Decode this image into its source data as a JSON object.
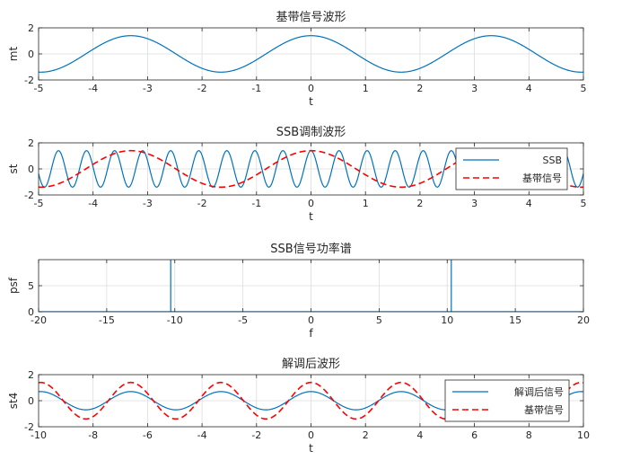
{
  "chart_data": [
    {
      "type": "line",
      "title": "基带信号波形",
      "xlabel": "t",
      "ylabel": "mt",
      "xlim": [
        -5,
        5
      ],
      "ylim": [
        -2,
        2
      ],
      "xticks": [
        -5,
        -4,
        -3,
        -2,
        -1,
        0,
        1,
        2,
        3,
        4,
        5
      ],
      "yticks": [
        -2,
        0,
        2
      ],
      "grid": true,
      "series": [
        {
          "function": "1.4*cos(1.9*t)",
          "color": "#0072BD",
          "style": "solid"
        }
      ]
    },
    {
      "type": "line",
      "title": "SSB调制波形",
      "xlabel": "t",
      "ylabel": "st",
      "xlim": [
        -5,
        5
      ],
      "ylim": [
        -2,
        2
      ],
      "xticks": [
        -5,
        -4,
        -3,
        -2,
        -1,
        0,
        1,
        2,
        3,
        4,
        5
      ],
      "yticks": [
        -2,
        0,
        2
      ],
      "grid": true,
      "legend": "top-right",
      "series": [
        {
          "name": "SSB",
          "function": "1.4*cos(12.2*t)",
          "color": "#0072BD",
          "style": "solid"
        },
        {
          "name": "基带信号",
          "function": "1.4*cos(1.9*t)",
          "color": "#FF0000",
          "style": "dashed"
        }
      ]
    },
    {
      "type": "line",
      "title": "SSB信号功率谱",
      "xlabel": "f",
      "ylabel": "psf",
      "xlim": [
        -20,
        20
      ],
      "ylim": [
        0,
        10
      ],
      "xticks": [
        -20,
        -15,
        -10,
        -5,
        0,
        5,
        10,
        15,
        20
      ],
      "yticks": [
        0,
        5
      ],
      "grid": true,
      "series": [
        {
          "name": "",
          "x": [
            -20,
            -10.3,
            -10.3,
            -10.3,
            10.3,
            10.3,
            10.3,
            20
          ],
          "y": [
            0,
            0,
            10,
            0,
            0,
            10,
            0,
            0
          ],
          "color": "#0072BD",
          "style": "solid"
        }
      ]
    },
    {
      "type": "line",
      "title": "解调后波形",
      "xlabel": "t",
      "ylabel": "st4",
      "xlim": [
        -10,
        10
      ],
      "ylim": [
        -2,
        2
      ],
      "xticks": [
        -10,
        -8,
        -6,
        -4,
        -2,
        0,
        2,
        4,
        6,
        8,
        10
      ],
      "yticks": [
        -2,
        0,
        2
      ],
      "grid": true,
      "legend": "top-right",
      "series": [
        {
          "name": "解调后信号",
          "function": "0.7*cos(1.9*t)",
          "color": "#0072BD",
          "style": "solid"
        },
        {
          "name": "基带信号",
          "function": "1.4*cos(1.9*t)",
          "color": "#FF0000",
          "style": "dashed"
        }
      ]
    }
  ]
}
